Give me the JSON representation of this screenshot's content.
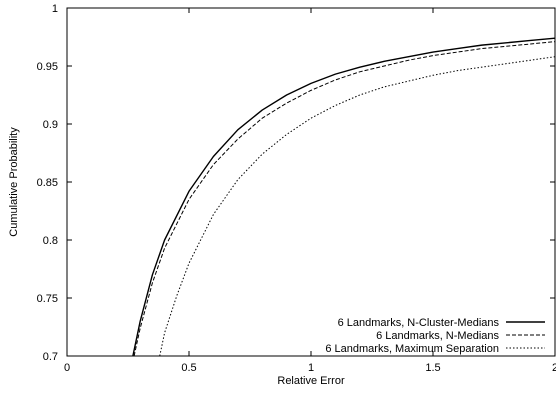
{
  "chart_data": {
    "type": "line",
    "title": "",
    "xlabel": "Relative Error",
    "ylabel": "Cumulative Probability",
    "xlim": [
      0,
      2
    ],
    "ylim": [
      0.7,
      1
    ],
    "x_ticks": [
      "0",
      "0.5",
      "1",
      "1.5",
      "2"
    ],
    "y_ticks": [
      "0.7",
      "0.75",
      "0.8",
      "0.85",
      "0.9",
      "0.95",
      "1"
    ],
    "grid": false,
    "legend_position": "bottom-right",
    "series": [
      {
        "name": "6 Landmarks, N-Cluster-Medians",
        "style": "solid",
        "x": [
          0.27,
          0.3,
          0.35,
          0.4,
          0.5,
          0.6,
          0.7,
          0.8,
          0.9,
          1.0,
          1.1,
          1.2,
          1.3,
          1.4,
          1.5,
          1.6,
          1.7,
          1.8,
          1.9,
          2.0
        ],
        "y": [
          0.7,
          0.73,
          0.77,
          0.8,
          0.842,
          0.872,
          0.895,
          0.912,
          0.925,
          0.935,
          0.943,
          0.949,
          0.954,
          0.958,
          0.962,
          0.965,
          0.968,
          0.97,
          0.972,
          0.974
        ]
      },
      {
        "name": "6 Landmarks, N-Medians",
        "style": "dashed",
        "x": [
          0.275,
          0.3,
          0.35,
          0.4,
          0.5,
          0.6,
          0.7,
          0.8,
          0.9,
          1.0,
          1.1,
          1.2,
          1.3,
          1.4,
          1.5,
          1.6,
          1.7,
          1.8,
          1.9,
          2.0
        ],
        "y": [
          0.7,
          0.724,
          0.763,
          0.793,
          0.835,
          0.865,
          0.887,
          0.905,
          0.918,
          0.929,
          0.938,
          0.945,
          0.95,
          0.955,
          0.959,
          0.962,
          0.965,
          0.967,
          0.969,
          0.971
        ]
      },
      {
        "name": "6 Landmarks, Maximum Separation",
        "style": "dotted",
        "x": [
          0.38,
          0.4,
          0.45,
          0.5,
          0.6,
          0.7,
          0.8,
          0.9,
          1.0,
          1.1,
          1.2,
          1.3,
          1.4,
          1.5,
          1.6,
          1.7,
          1.8,
          1.9,
          2.0
        ],
        "y": [
          0.7,
          0.72,
          0.752,
          0.78,
          0.822,
          0.852,
          0.874,
          0.891,
          0.905,
          0.916,
          0.925,
          0.932,
          0.937,
          0.942,
          0.946,
          0.949,
          0.952,
          0.955,
          0.958
        ]
      }
    ]
  }
}
